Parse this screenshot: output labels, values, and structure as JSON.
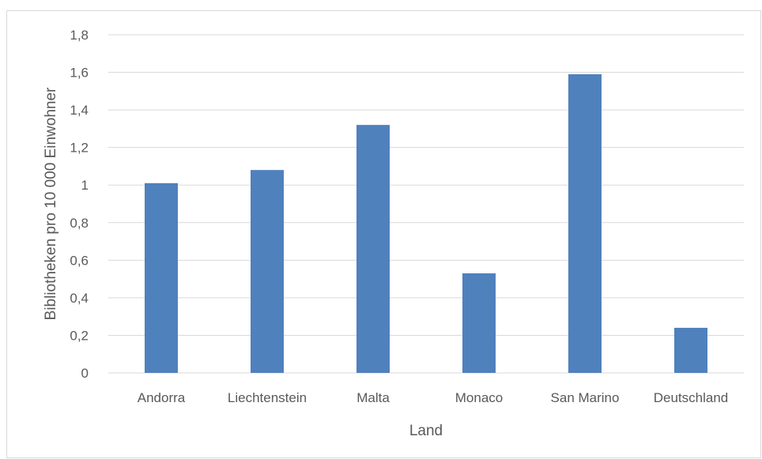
{
  "chart_data": {
    "type": "bar",
    "title": "",
    "xlabel": "Land",
    "ylabel": "Bibliotheken pro 10 000 Einwohner",
    "categories": [
      "Andorra",
      "Liechtenstein",
      "Malta",
      "Monaco",
      "San Marino",
      "Deutschland"
    ],
    "values": [
      1.01,
      1.08,
      1.32,
      0.53,
      1.59,
      0.24
    ],
    "ylim": [
      0,
      1.8
    ],
    "yticks": [
      "0",
      "0,2",
      "0,4",
      "0,6",
      "0,8",
      "1",
      "1,2",
      "1,4",
      "1,6",
      "1,8"
    ],
    "grid": true,
    "legend": "none",
    "bar_color": "#4f81bd",
    "grid_color": "#d9d9d9"
  }
}
